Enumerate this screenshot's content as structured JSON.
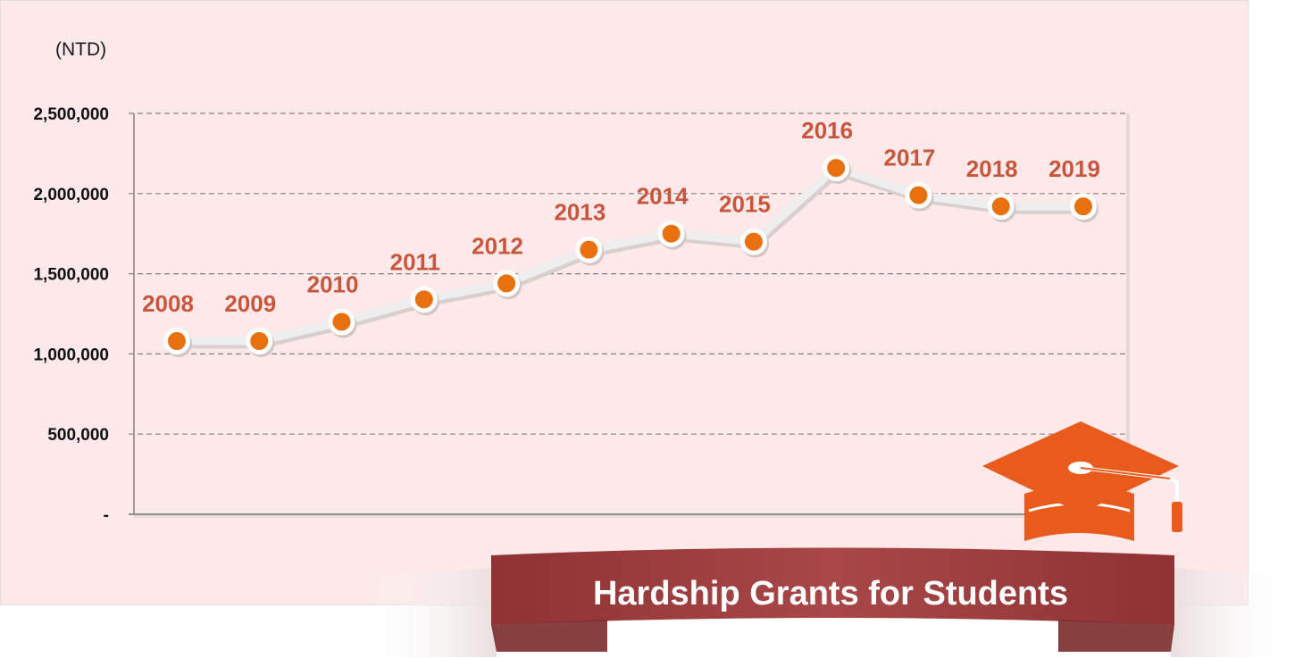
{
  "unit_label": "(NTD)",
  "banner": {
    "title": "Hardship Grants for Students"
  },
  "icons": {
    "graduation": "graduation-cap-icon"
  },
  "colors": {
    "accent": "#e8700e",
    "label": "#c8563c",
    "ribbon": "#9c3b3c",
    "cap": "#e85b1c",
    "background": "#fde9e9"
  },
  "chart_data": {
    "type": "line",
    "x": [
      "2008",
      "2009",
      "2010",
      "2011",
      "2012",
      "2013",
      "2014",
      "2015",
      "2016",
      "2017",
      "2018",
      "2019"
    ],
    "values": [
      1080000,
      1080000,
      1200000,
      1340000,
      1440000,
      1650000,
      1750000,
      1700000,
      2160000,
      1990000,
      1920000,
      1920000
    ],
    "yticks": [
      0,
      500000,
      1000000,
      1500000,
      2000000,
      2500000
    ],
    "ytick_labels": [
      "-",
      "500,000",
      "1,000,000",
      "1,500,000",
      "2,000,000",
      "2,500,000"
    ],
    "ylim": [
      0,
      2500000
    ],
    "ylabel": "(NTD)",
    "title": "",
    "grid": true,
    "data_labels": "year above each point"
  }
}
